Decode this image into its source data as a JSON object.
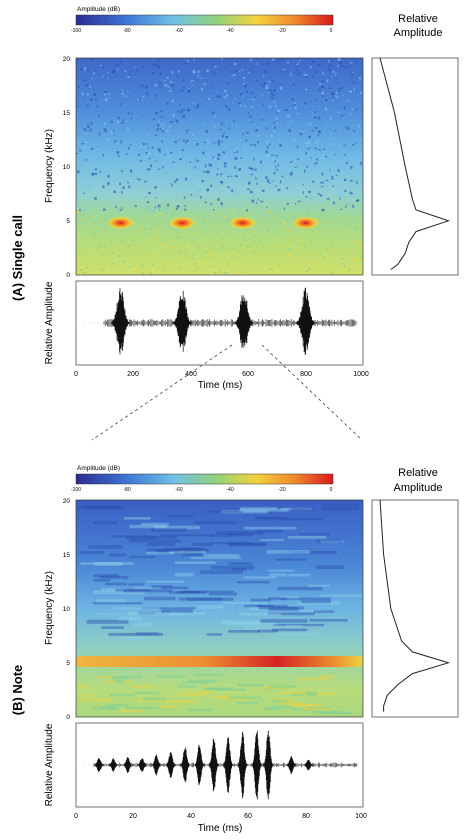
{
  "panel_a": {
    "label": "(A) Single call",
    "colorbar": {
      "title": "Amplitude (dB)",
      "ticks": [
        "-100",
        "-80",
        "-60",
        "-40",
        "-20",
        "0"
      ],
      "colors": [
        "#2c2c8f",
        "#3b6fd1",
        "#6fc1e8",
        "#93d27a",
        "#f2d23c",
        "#f08a2a",
        "#d7191c"
      ]
    },
    "spectrogram": {
      "ylabel": "Frequency (kHz)",
      "yticks": [
        "0",
        "5",
        "10",
        "15",
        "20"
      ]
    },
    "side_title_line1": "Relative",
    "side_title_line2": "Amplitude",
    "waveform": {
      "ylabel": "Relative Amplitude",
      "xlabel": "Time (ms)",
      "xticks": [
        "0",
        "200",
        "400",
        "600",
        "800",
        "1000"
      ]
    }
  },
  "panel_b": {
    "label": "(B) Note",
    "colorbar": {
      "title": "Amplitude (dB)",
      "ticks": [
        "-100",
        "-80",
        "-60",
        "-40",
        "-20",
        "0"
      ]
    },
    "spectrogram": {
      "ylabel": "Frequency (kHz)",
      "yticks": [
        "0",
        "5",
        "10",
        "15",
        "20"
      ]
    },
    "side_title_line1": "Relative",
    "side_title_line2": "Amplitude",
    "waveform": {
      "ylabel": "Relative Amplitude",
      "xlabel": "Time (ms)",
      "xticks": [
        "0",
        "20",
        "40",
        "60",
        "80",
        "100"
      ]
    }
  },
  "chart_data": [
    {
      "type": "heatmap",
      "title": "(A) Single call",
      "colorbar_label": "Amplitude (dB)",
      "colorbar_range": [
        -100,
        0
      ],
      "xlim": [
        0,
        1000
      ],
      "ylim": [
        0,
        20
      ],
      "ylabel": "Frequency (kHz)",
      "bright_blobs": [
        {
          "time_ms": 155,
          "freq_khz": 4.8,
          "db": -5
        },
        {
          "time_ms": 370,
          "freq_khz": 4.8,
          "db": -5
        },
        {
          "time_ms": 580,
          "freq_khz": 4.8,
          "db": -5
        },
        {
          "time_ms": 800,
          "freq_khz": 4.8,
          "db": -5
        }
      ]
    },
    {
      "type": "line",
      "title": "Relative Amplitude",
      "series": [
        {
          "x": [
            0.0,
            0.2,
            0.35,
            0.45,
            0.5,
            0.95,
            0.5,
            0.4,
            0.35,
            0.3,
            0.25,
            0.15
          ],
          "y": [
            20,
            15,
            10,
            7,
            6,
            5,
            4,
            3,
            2,
            1.5,
            1,
            0.5
          ]
        }
      ],
      "ylim": [
        0,
        20
      ]
    },
    {
      "type": "line",
      "title": "Relative Amplitude",
      "xlabel": "Time (ms)",
      "xlim": [
        0,
        1000
      ],
      "bursts": [
        {
          "center_ms": 155,
          "amplitude": 1.0
        },
        {
          "center_ms": 370,
          "amplitude": 1.0
        },
        {
          "center_ms": 585,
          "amplitude": 0.95
        },
        {
          "center_ms": 800,
          "amplitude": 1.0
        }
      ]
    },
    {
      "type": "heatmap",
      "title": "(B) Note",
      "colorbar_label": "Amplitude (dB)",
      "colorbar_range": [
        -100,
        0
      ],
      "xlim": [
        0,
        100
      ],
      "ylim": [
        0,
        20
      ],
      "ylabel": "Frequency (kHz)",
      "band": {
        "freq_khz": 4.8,
        "start_ms": 0,
        "end_ms": 100,
        "peak_ms": 65,
        "db": -5
      }
    },
    {
      "type": "line",
      "title": "Relative Amplitude",
      "series": [
        {
          "x": [
            0.0,
            0.05,
            0.15,
            0.3,
            0.45,
            0.95,
            0.45,
            0.25,
            0.1,
            0.05,
            0.05
          ],
          "y": [
            20,
            15,
            10,
            7,
            6,
            5,
            4,
            3,
            2,
            1,
            0.5
          ]
        }
      ],
      "ylim": [
        0,
        20
      ]
    },
    {
      "type": "line",
      "title": "Relative Amplitude",
      "xlabel": "Time (ms)",
      "xlim": [
        0,
        100
      ],
      "pulses": [
        {
          "t_ms": 8,
          "amplitude": 0.2
        },
        {
          "t_ms": 13,
          "amplitude": 0.18
        },
        {
          "t_ms": 18,
          "amplitude": 0.22
        },
        {
          "t_ms": 23,
          "amplitude": 0.2
        },
        {
          "t_ms": 28,
          "amplitude": 0.28
        },
        {
          "t_ms": 33,
          "amplitude": 0.35
        },
        {
          "t_ms": 38,
          "amplitude": 0.5
        },
        {
          "t_ms": 43,
          "amplitude": 0.6
        },
        {
          "t_ms": 48,
          "amplitude": 0.75
        },
        {
          "t_ms": 53,
          "amplitude": 0.82
        },
        {
          "t_ms": 58,
          "amplitude": 0.9
        },
        {
          "t_ms": 63,
          "amplitude": 0.97
        },
        {
          "t_ms": 67,
          "amplitude": 1.0
        },
        {
          "t_ms": 75,
          "amplitude": 0.25
        },
        {
          "t_ms": 81,
          "amplitude": 0.15
        }
      ]
    }
  ]
}
